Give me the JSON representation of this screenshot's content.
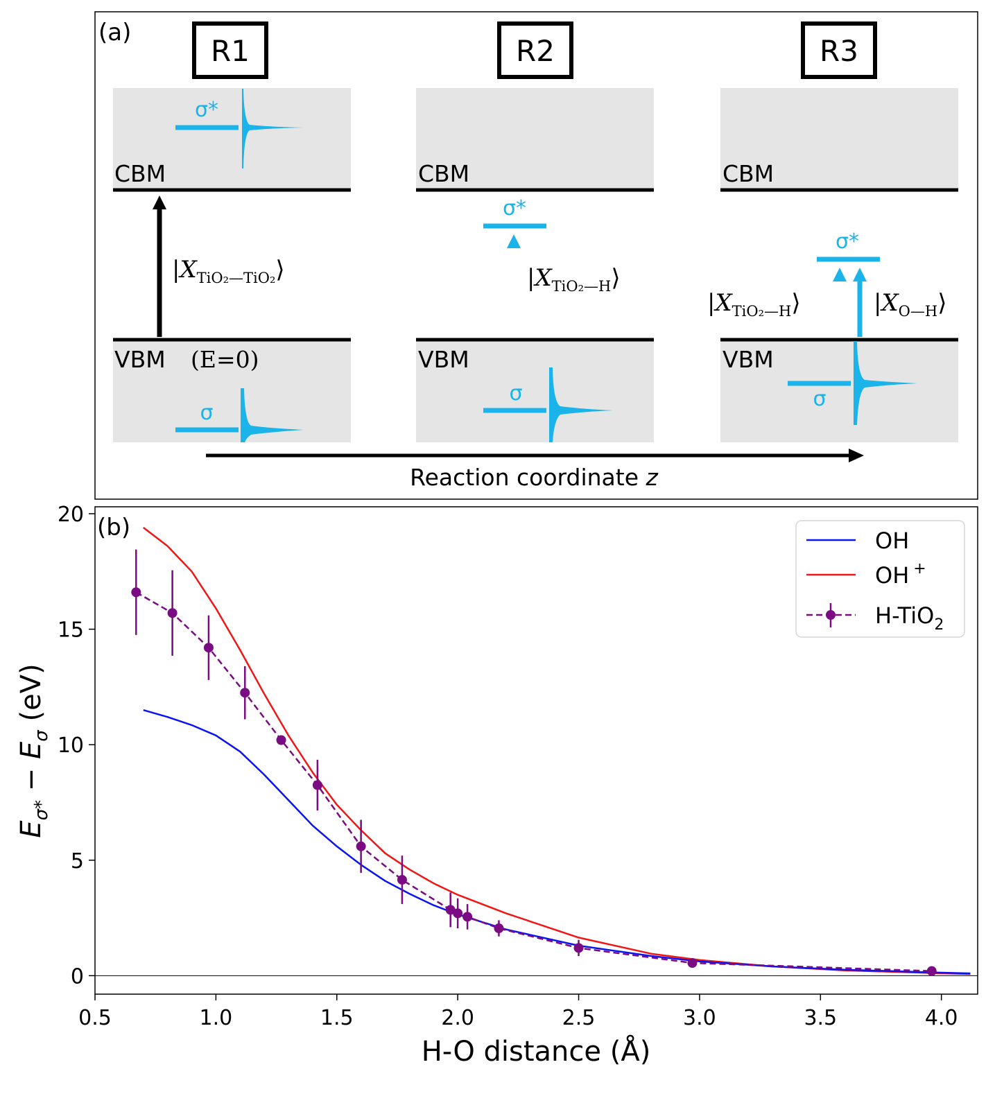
{
  "panel_a": {
    "label": "(a)",
    "regimes": [
      {
        "title": "R1",
        "cbm_label": "CBM",
        "vbm_label": "VBM",
        "vbm_note": "(E=0)",
        "sigma_star_label": "σ*",
        "sigma_label": "σ",
        "exciton_labels": [
          "|X",
          "TiO₂—TiO₂",
          "⟩"
        ]
      },
      {
        "title": "R2",
        "cbm_label": "CBM",
        "vbm_label": "VBM",
        "sigma_star_label": "σ*",
        "sigma_label": "σ",
        "exciton_labels": [
          "|X",
          "TiO₂—H",
          "⟩"
        ]
      },
      {
        "title": "R3",
        "cbm_label": "CBM",
        "vbm_label": "VBM",
        "sigma_star_label": "σ*",
        "sigma_label": "σ",
        "exciton_labels": [
          "|X",
          "TiO₂—H",
          "⟩"
        ],
        "exciton_labels_2": [
          "|X",
          "O—H",
          "⟩"
        ]
      }
    ],
    "reaction_axis_label": "Reaction coordinate",
    "reaction_axis_var": "z"
  },
  "colors": {
    "cyan": "#1ab3ea",
    "gray_band": "#e5e5e5",
    "oh": "#0a14f2",
    "oh_plus": "#f01616",
    "htio2": "#7a0b82"
  },
  "chart_data": {
    "label": "(b)",
    "type": "line",
    "xlabel": "H-O distance (Å)",
    "ylabel_parts": [
      "E",
      "σ*",
      " − E",
      "σ",
      " (eV)"
    ],
    "xlim": [
      0.5,
      4.15
    ],
    "ylim": [
      -0.8,
      20.3
    ],
    "xticks": [
      0.5,
      1.0,
      1.5,
      2.0,
      2.5,
      3.0,
      3.5,
      4.0
    ],
    "yticks": [
      0,
      5,
      10,
      15,
      20
    ],
    "zero_line": true,
    "legend": [
      "OH",
      "OH",
      "H-TiO",
      "+",
      "2"
    ],
    "legend_position": "top-right",
    "series": [
      {
        "name": "OH",
        "style": "solid",
        "x": [
          0.7,
          0.8,
          0.9,
          1.0,
          1.1,
          1.2,
          1.3,
          1.4,
          1.5,
          1.6,
          1.7,
          1.8,
          1.9,
          2.0,
          2.2,
          2.5,
          2.8,
          3.0,
          3.3,
          3.6,
          4.0,
          4.12
        ],
        "y": [
          11.5,
          11.2,
          10.85,
          10.4,
          9.7,
          8.7,
          7.6,
          6.5,
          5.6,
          4.8,
          4.1,
          3.55,
          3.05,
          2.65,
          2.0,
          1.3,
          0.85,
          0.62,
          0.4,
          0.26,
          0.13,
          0.1
        ]
      },
      {
        "name": "OH+",
        "style": "solid",
        "x": [
          0.7,
          0.8,
          0.9,
          1.0,
          1.1,
          1.2,
          1.3,
          1.4,
          1.5,
          1.6,
          1.7,
          1.8,
          1.9,
          2.0,
          2.2,
          2.5,
          2.8,
          3.0,
          3.3,
          3.6,
          4.0,
          4.12
        ],
        "y": [
          19.4,
          18.6,
          17.5,
          15.9,
          14.1,
          12.2,
          10.4,
          8.8,
          7.4,
          6.3,
          5.3,
          4.6,
          4.0,
          3.5,
          2.7,
          1.65,
          0.95,
          0.68,
          0.4,
          0.23,
          0.1,
          0.07
        ]
      },
      {
        "name": "H-TiO2",
        "style": "dashed-markers",
        "x": [
          0.67,
          0.82,
          0.97,
          1.12,
          1.27,
          1.42,
          1.6,
          1.77,
          1.97,
          2.0,
          2.04,
          2.17,
          2.5,
          2.97,
          3.96
        ],
        "y": [
          16.6,
          15.7,
          14.2,
          12.25,
          10.2,
          8.25,
          5.6,
          4.15,
          2.85,
          2.7,
          2.55,
          2.05,
          1.2,
          0.55,
          0.2
        ],
        "yerr": [
          1.85,
          1.85,
          1.4,
          1.15,
          0.15,
          1.1,
          1.15,
          1.05,
          0.75,
          0.65,
          0.55,
          0.35,
          0.35,
          0.1,
          0.1
        ]
      }
    ]
  }
}
